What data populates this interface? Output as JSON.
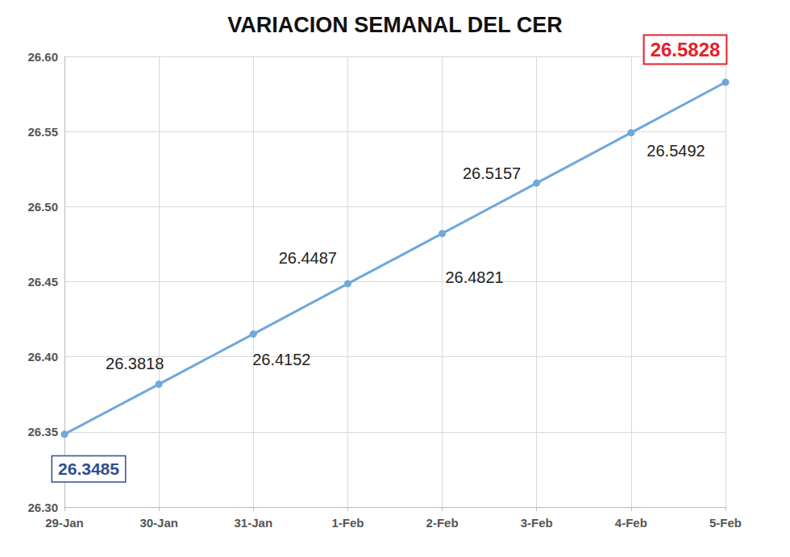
{
  "chart_data": {
    "type": "line",
    "title": "VARIACION SEMANAL DEL CER",
    "categories": [
      "29-Jan",
      "30-Jan",
      "31-Jan",
      "1-Feb",
      "2-Feb",
      "3-Feb",
      "4-Feb",
      "5-Feb"
    ],
    "values": [
      26.3485,
      26.3818,
      26.4152,
      26.4487,
      26.4821,
      26.5157,
      26.5492,
      26.5828
    ],
    "color": "#6fa8dc",
    "marker": "circle",
    "ylim": [
      26.3,
      26.6
    ],
    "yticks": [
      {
        "value": 26.3,
        "label": "26.30"
      },
      {
        "value": 26.35,
        "label": "26.35"
      },
      {
        "value": 26.4,
        "label": "26.40"
      },
      {
        "value": 26.45,
        "label": "26.45"
      },
      {
        "value": 26.5,
        "label": "26.50"
      },
      {
        "value": 26.55,
        "label": "26.55"
      },
      {
        "value": 26.6,
        "label": "26.60"
      }
    ],
    "grid": true,
    "data_labels": true
  }
}
